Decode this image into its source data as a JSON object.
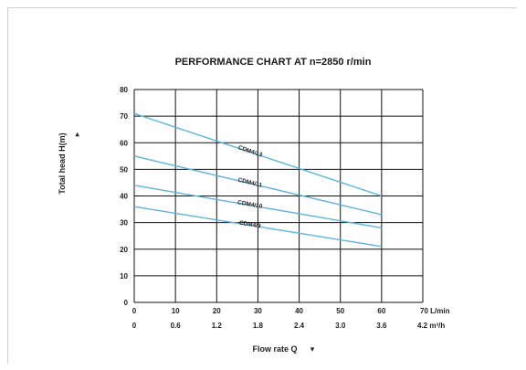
{
  "chart_data": {
    "type": "line",
    "title": "PERFORMANCE CHART AT n=2850 r/min",
    "xlabel": "Flow rate  Q",
    "ylabel": "Total head H(m)",
    "xlim": [
      0,
      70
    ],
    "ylim": [
      0,
      80
    ],
    "x_ticks_lmin": [
      "0",
      "10",
      "20",
      "30",
      "40",
      "50",
      "60",
      "70"
    ],
    "x_unit_lmin": "L/min",
    "x_ticks_m3h": [
      "0",
      "0.6",
      "1.2",
      "1.8",
      "2.4",
      "3.0",
      "3.6",
      "4.2"
    ],
    "x_unit_m3h": "m³/h",
    "y_ticks": [
      "0",
      "10",
      "20",
      "30",
      "40",
      "50",
      "60",
      "70",
      "80"
    ],
    "grid": true,
    "series": [
      {
        "name": "CDM4/13",
        "x": [
          0,
          60
        ],
        "y": [
          71,
          40
        ]
      },
      {
        "name": "CDM4/11",
        "x": [
          0,
          60
        ],
        "y": [
          55,
          33
        ]
      },
      {
        "name": "CDM4/10",
        "x": [
          0,
          60
        ],
        "y": [
          44,
          28
        ]
      },
      {
        "name": "CDM4/9",
        "x": [
          0,
          60
        ],
        "y": [
          36,
          21
        ]
      }
    ]
  },
  "colors": {
    "series_line": "#5fb4dc",
    "grid": "#111111",
    "text": "#222222"
  }
}
